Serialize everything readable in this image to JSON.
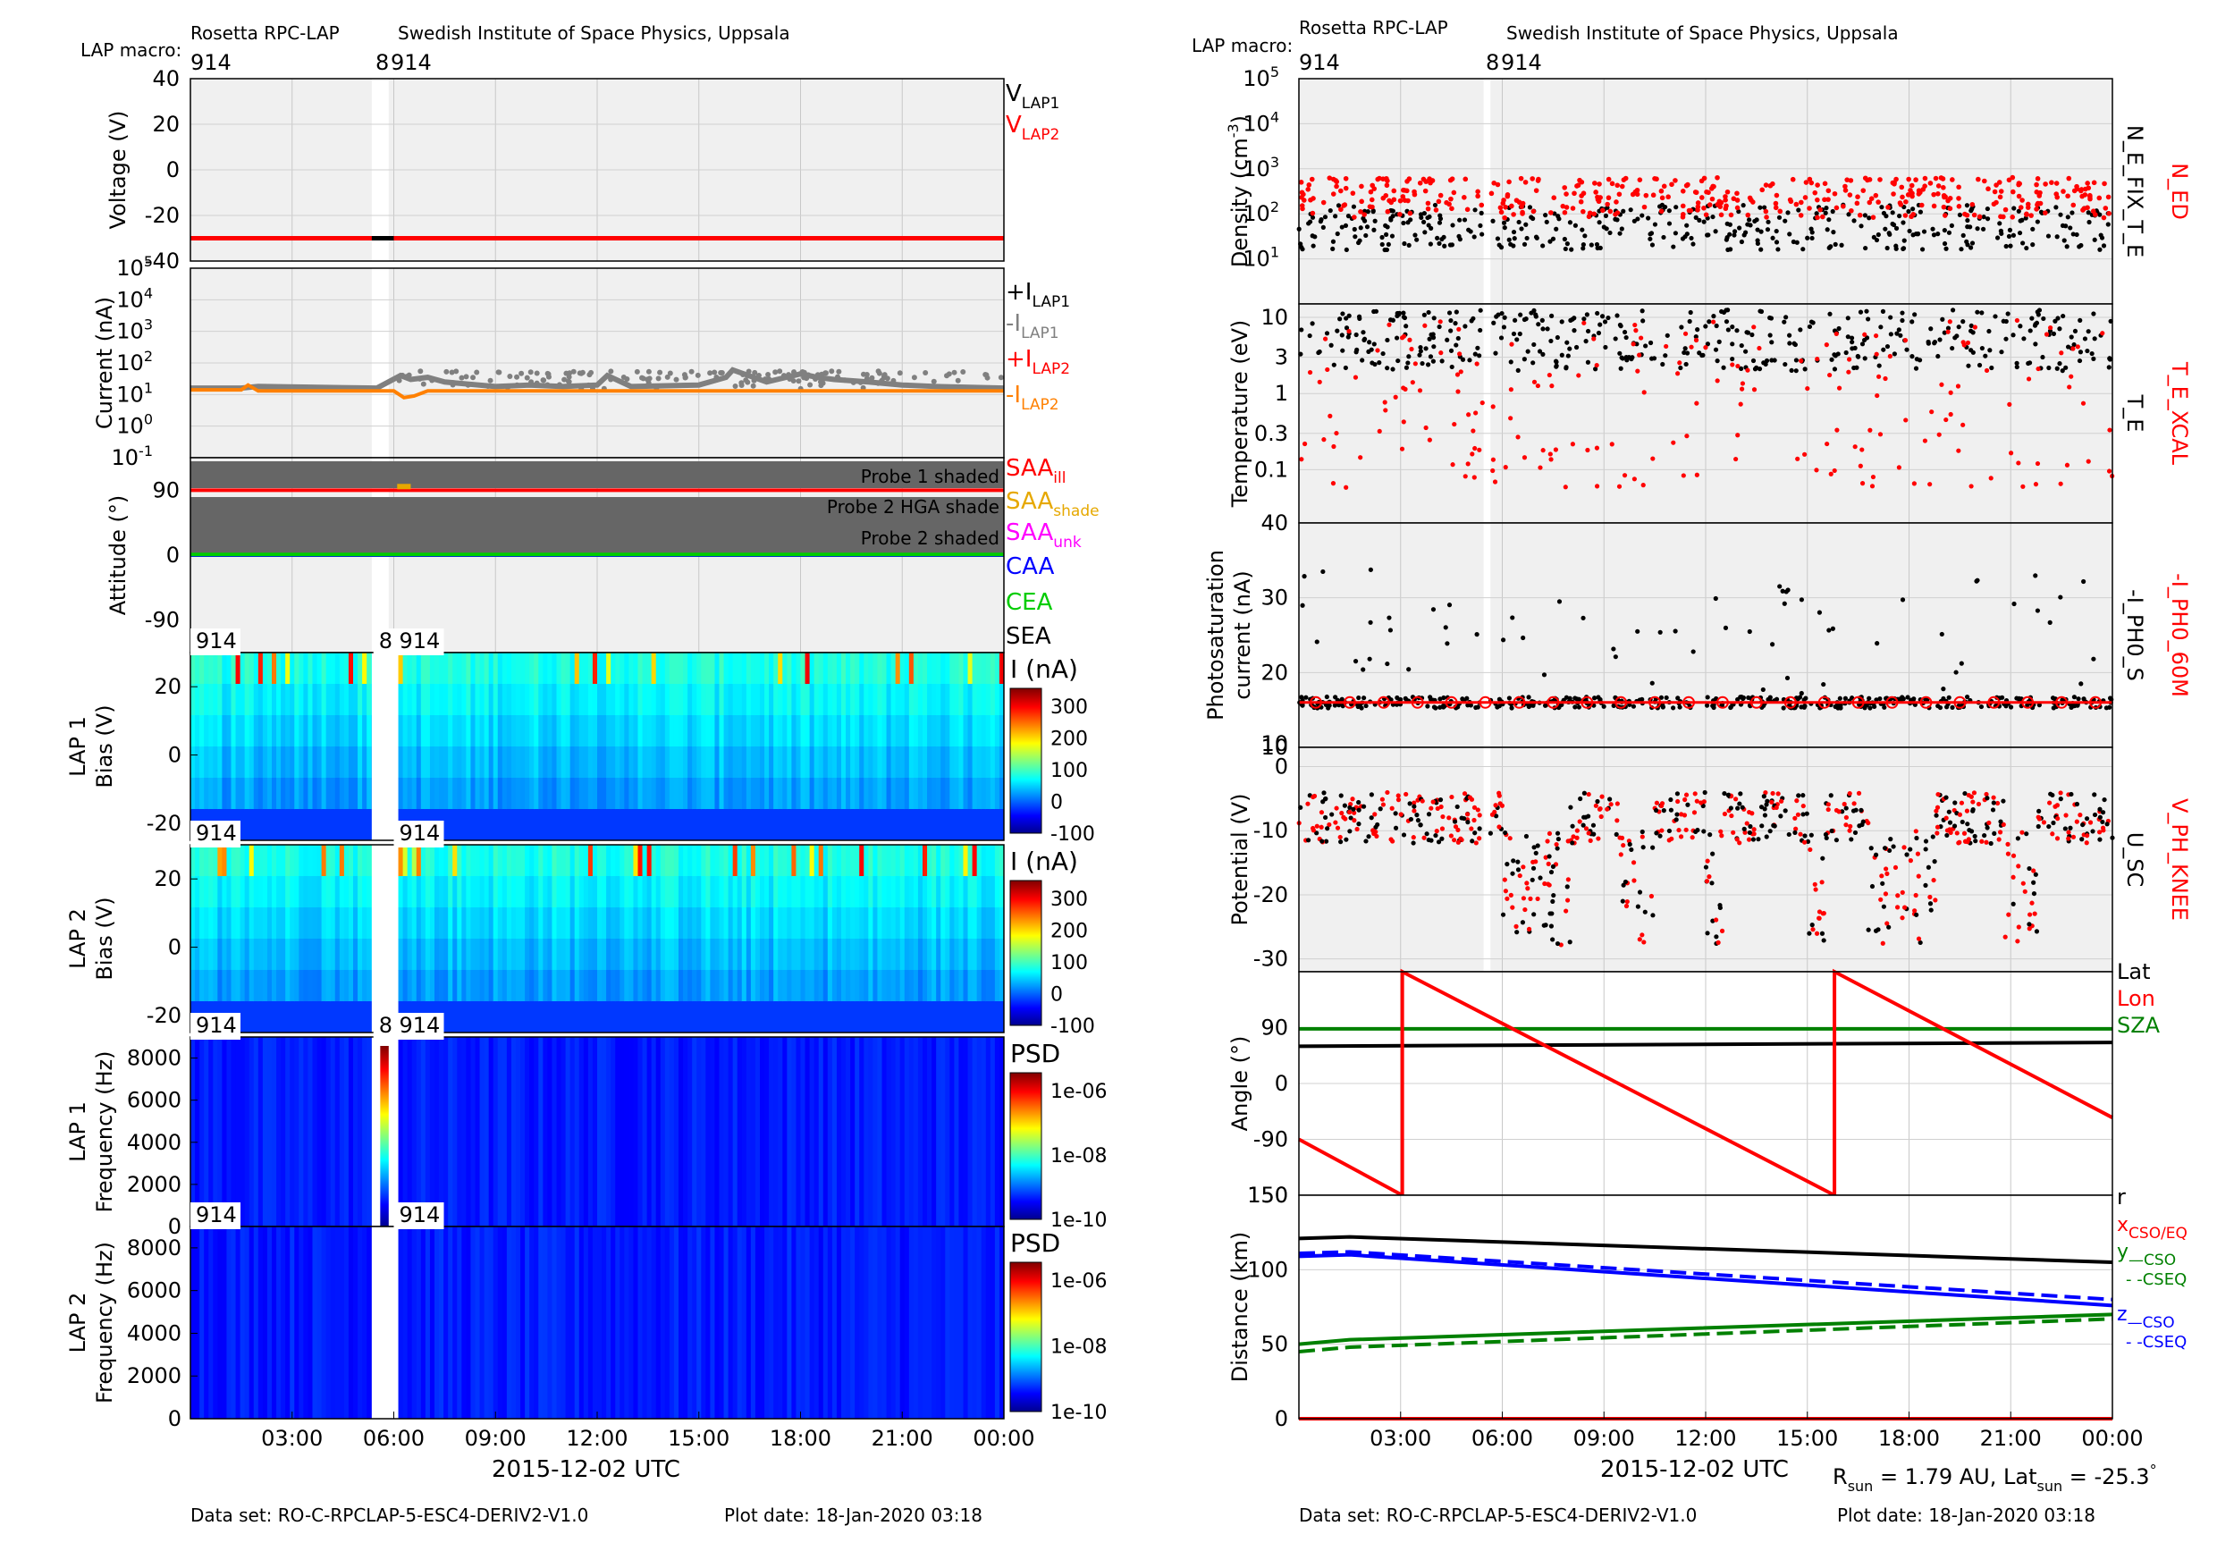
{
  "header": {
    "left": {
      "instrument": "Rosetta RPC-LAP",
      "institute": "Swedish Institute of Space Physics, Uppsala",
      "macro_label": "LAP macro:"
    },
    "right": {
      "instrument": "Rosetta RPC-LAP",
      "institute": "Swedish Institute of Space Physics, Uppsala",
      "macro_label": "LAP macro:"
    },
    "macro_left": "914",
    "macro_mid": "8",
    "macro_mid2": "914"
  },
  "footer": {
    "left_dataset": "Data set: RO-C-RPCLAP-5-ESC4-DERIV2-V1.0",
    "left_plotdate": "Plot date: 18-Jan-2020 03:18",
    "right_dataset": "Data set: RO-C-RPCLAP-5-ESC4-DERIV2-V1.0",
    "right_plotdate": "Plot date: 18-Jan-2020 03:18",
    "rsun_text": "R",
    "rsun_sub": "sun",
    "rsun_value": " = 1.79 AU, Lat",
    "lat_sub": "sun",
    "lat_value": " = -25.3",
    "degree": "°"
  },
  "time_axis": {
    "ticks": [
      "03:00",
      "06:00",
      "09:00",
      "12:00",
      "15:00",
      "18:00",
      "21:00",
      "00:00"
    ],
    "xlabel": "2015-12-02 UTC",
    "hours": [
      3,
      6,
      9,
      12,
      15,
      18,
      21,
      24
    ]
  },
  "colors": {
    "black": "#000000",
    "red": "#ff0000",
    "gray": "#808080",
    "orange": "#ff8000",
    "blue": "#0000ff",
    "green": "#00cc00",
    "darkgreen": "#008000",
    "magenta": "#ff00ff",
    "saa_shade": "#e6a800",
    "panel_bg": "#f0f0f0"
  },
  "chart_data": [
    {
      "id": "voltage",
      "type": "line",
      "ylabel": "Voltage (V)",
      "ylim": [
        -40,
        40
      ],
      "yticks": [
        "40",
        "20",
        "0",
        "-20",
        "-40"
      ],
      "series": [
        {
          "name": "V",
          "sub": "LAP1",
          "color": "#000000",
          "x": [
            0,
            5.5,
            6.0
          ],
          "y": [
            -30,
            -30,
            -30
          ]
        },
        {
          "name": "V",
          "sub": "LAP2",
          "color": "#ff0000",
          "x": [
            0,
            24
          ],
          "y": [
            -30,
            -30
          ]
        }
      ]
    },
    {
      "id": "current",
      "type": "line",
      "ylabel": "Current (nA)",
      "yscale": "log",
      "ylim": [
        0.1,
        100000
      ],
      "yticks": [
        {
          "base": "10",
          "exp": "5"
        },
        {
          "base": "10",
          "exp": "4"
        },
        {
          "base": "10",
          "exp": "3"
        },
        {
          "base": "10",
          "exp": "2"
        },
        {
          "base": "10",
          "exp": "1"
        },
        {
          "base": "10",
          "exp": "0"
        },
        {
          "base": "10",
          "exp": "-1"
        }
      ],
      "series": [
        {
          "name": "+I",
          "sub": "LAP1",
          "color": "#000000"
        },
        {
          "name": "-I",
          "sub": "LAP1",
          "color": "#808080",
          "x": [
            0,
            1.5,
            2.0,
            5.5,
            6.2,
            6.5,
            7.0,
            7.5,
            9.0,
            10.0,
            11.0,
            12.0,
            12.3,
            13.0,
            15.0,
            15.8,
            16.0,
            17.0,
            18.0,
            18.5,
            19.0,
            20.0,
            21.0,
            22.0,
            24.0
          ],
          "y": [
            16,
            16,
            18,
            16,
            40,
            30,
            35,
            25,
            18,
            20,
            18,
            20,
            40,
            18,
            20,
            35,
            60,
            25,
            45,
            35,
            30,
            25,
            20,
            18,
            16
          ]
        },
        {
          "name": "+I",
          "sub": "LAP2",
          "color": "#ff0000"
        },
        {
          "name": "-I",
          "sub": "LAP2",
          "color": "#ff8000",
          "x": [
            0,
            1.5,
            1.7,
            2.0,
            6.0,
            6.3,
            6.6,
            7.0,
            24.0
          ],
          "y": [
            14,
            14,
            20,
            13,
            13,
            8,
            9,
            13,
            13
          ]
        }
      ]
    },
    {
      "id": "attitude",
      "type": "line",
      "ylabel": "Attitude (°)",
      "ylim": [
        -135,
        135
      ],
      "yticks": [
        "90",
        "0",
        "-90"
      ],
      "shades": [
        {
          "label": "Probe 1 shaded",
          "y0": 115,
          "y1": 135
        },
        {
          "label": "Probe 2 HGA shade",
          "y0": 75,
          "y1": 95
        },
        {
          "label": "Probe 2 shaded",
          "y0": 45,
          "y1": 90
        }
      ],
      "series": [
        {
          "name": "SAA",
          "sub": "ill",
          "color": "#ff0000",
          "x": [
            0,
            24
          ],
          "y": [
            90,
            90
          ]
        },
        {
          "name": "SAA",
          "sub": "shade",
          "color": "#e6a800",
          "x": [
            6.1,
            6.5
          ],
          "y": [
            95,
            95
          ]
        },
        {
          "name": "SAA",
          "sub": "unk",
          "color": "#ff00ff"
        },
        {
          "name": "CAA",
          "color": "#0000ff",
          "x": [
            0,
            24
          ],
          "y": [
            0,
            0
          ]
        },
        {
          "name": "CEA",
          "color": "#00cc00",
          "x": [
            0,
            24
          ],
          "y": [
            1,
            1
          ]
        },
        {
          "name": "SEA",
          "color": "#000000"
        }
      ]
    },
    {
      "id": "lap1_bias",
      "type": "heatmap",
      "ylabel": "LAP 1",
      "ylabel2": "Bias (V)",
      "ylim": [
        -25,
        30
      ],
      "yticks": [
        "20",
        "0",
        "-20"
      ],
      "colorbar": {
        "label": "I (nA)",
        "ticks": [
          "300",
          "200",
          "100",
          "0",
          "-100"
        ]
      },
      "gap_hours": [
        5.5,
        6.0
      ],
      "macro_top": [
        "914",
        "8",
        "914"
      ],
      "macro_bottom": [
        "914",
        "914"
      ]
    },
    {
      "id": "lap2_bias",
      "type": "heatmap",
      "ylabel": "LAP 2",
      "ylabel2": "Bias (V)",
      "ylim": [
        -25,
        30
      ],
      "yticks": [
        "20",
        "0",
        "-20"
      ],
      "colorbar": {
        "label": "I (nA)",
        "ticks": [
          "300",
          "200",
          "100",
          "0",
          "-100"
        ]
      },
      "gap_hours": [
        5.5,
        6.0
      ],
      "macro_top": [
        "914",
        "914"
      ]
    },
    {
      "id": "lap1_freq",
      "type": "heatmap",
      "ylabel": "LAP 1",
      "ylabel2": "Frequency (Hz)",
      "ylim": [
        0,
        9000
      ],
      "yticks": [
        "8000",
        "6000",
        "4000",
        "2000",
        "0"
      ],
      "colorbar": {
        "label": "PSD",
        "ticks": [
          "1e-06",
          "1e-08",
          "1e-10"
        ]
      },
      "macro_top": [
        "914",
        "8",
        "914"
      ]
    },
    {
      "id": "lap2_freq",
      "type": "heatmap",
      "ylabel": "LAP 2",
      "ylabel2": "Frequency (Hz)",
      "ylim": [
        0,
        9000
      ],
      "yticks": [
        "8000",
        "6000",
        "4000",
        "2000",
        "0"
      ],
      "colorbar": {
        "label": "PSD",
        "ticks": [
          "1e-06",
          "1e-08",
          "1e-10"
        ]
      },
      "macro_top": [
        "914",
        "914"
      ]
    },
    {
      "id": "density",
      "type": "scatter",
      "ylabel": "Density (cm",
      "ylabel_sup": "-3",
      "ylabel_end": ")",
      "yscale": "log",
      "ylim": [
        1,
        100000
      ],
      "yticks": [
        {
          "base": "10",
          "exp": "5"
        },
        {
          "base": "10",
          "exp": "4"
        },
        {
          "base": "10",
          "exp": "3"
        },
        {
          "base": "10",
          "exp": "2"
        },
        {
          "base": "10",
          "exp": "1"
        }
      ],
      "series": [
        {
          "name": "N_ED",
          "color": "#ff0000",
          "typical": 150
        },
        {
          "name": "N_E_FIX_T_E",
          "color": "#000000",
          "typical": 50
        }
      ]
    },
    {
      "id": "temperature",
      "type": "scatter",
      "ylabel": "Temperature (eV)",
      "yscale": "log",
      "ylim": [
        0.02,
        15
      ],
      "yticks": [
        "10",
        "3",
        "1",
        "0.3",
        "0.1"
      ],
      "series": [
        {
          "name": "T_E_XCAL",
          "color": "#ff0000"
        },
        {
          "name": "T_E",
          "color": "#000000"
        }
      ]
    },
    {
      "id": "photosat",
      "type": "scatter",
      "ylabel": "Photosaturation",
      "ylabel2": "current (nA)",
      "ylim": [
        10,
        40
      ],
      "yticks": [
        "40",
        "30",
        "20",
        "10"
      ],
      "series": [
        {
          "name": "-I_PH0_60M",
          "color": "#ff0000",
          "typical": 16
        },
        {
          "name": "-I_PH0_S",
          "color": "#000000",
          "typical": 16
        }
      ]
    },
    {
      "id": "potential",
      "type": "scatter",
      "ylabel": "Potential (V)",
      "ylim": [
        -32,
        3
      ],
      "yticks": [
        "10",
        "0",
        "-10",
        "-20",
        "-30"
      ],
      "series": [
        {
          "name": "V_PH_KNEE",
          "color": "#ff0000"
        },
        {
          "name": "U_SC",
          "color": "#000000"
        }
      ]
    },
    {
      "id": "angle",
      "type": "line",
      "ylabel": "Angle (°)",
      "ylim": [
        -180,
        180
      ],
      "yticks": [
        "90",
        "0",
        "-90",
        "150"
      ],
      "series": [
        {
          "name": "Lat",
          "color": "#000000",
          "x": [
            0,
            24
          ],
          "y": [
            60,
            66
          ]
        },
        {
          "name": "Lon",
          "color": "#ff0000",
          "x": [
            0,
            3.05,
            3.05,
            15.8,
            15.8,
            24
          ],
          "y": [
            -90,
            -180,
            180,
            -180,
            180,
            -55
          ]
        },
        {
          "name": "SZA",
          "color": "#008000",
          "x": [
            0,
            24
          ],
          "y": [
            88,
            88
          ]
        }
      ]
    },
    {
      "id": "distance",
      "type": "line",
      "ylabel": "Distance (km)",
      "ylim": [
        0,
        150
      ],
      "yticks": [
        "150",
        "100",
        "50",
        "0"
      ],
      "series": [
        {
          "name": "r",
          "color": "#000000",
          "x": [
            0,
            1.5,
            24
          ],
          "y": [
            121,
            122,
            105
          ]
        },
        {
          "name": "x",
          "sub": "CSO/EQ",
          "color": "#ff0000",
          "x": [
            0,
            24
          ],
          "y": [
            0,
            0
          ]
        },
        {
          "name": "y",
          "sub": "—CSO",
          "color": "#008000",
          "x": [
            0,
            1.5,
            24
          ],
          "y": [
            50,
            53,
            70
          ]
        },
        {
          "name": "- -CSEQ",
          "color": "#008000",
          "dash": true,
          "x": [
            0,
            1.5,
            24
          ],
          "y": [
            45,
            48,
            67
          ]
        },
        {
          "name": "z",
          "sub": "—CSO",
          "color": "#0000ff",
          "x": [
            0,
            1.5,
            24
          ],
          "y": [
            109,
            110,
            76
          ]
        },
        {
          "name": "- -CSEQ",
          "color": "#0000ff",
          "dash": true,
          "x": [
            0,
            1.5,
            24
          ],
          "y": [
            111,
            112,
            80
          ]
        }
      ]
    }
  ]
}
